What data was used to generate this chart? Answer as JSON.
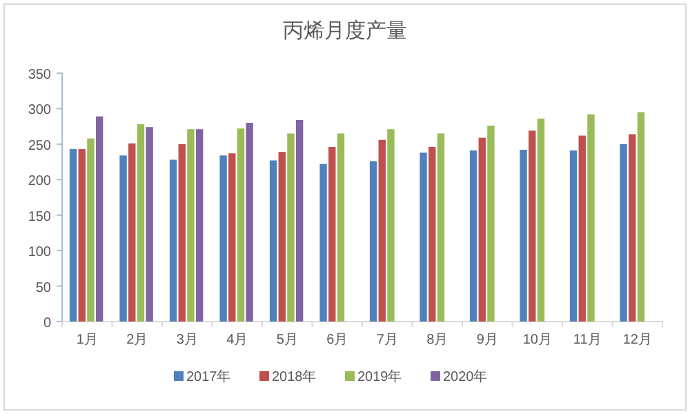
{
  "chart_data": {
    "type": "bar",
    "title": "丙烯月度产量",
    "categories": [
      "1月",
      "2月",
      "3月",
      "4月",
      "5月",
      "6月",
      "7月",
      "8月",
      "9月",
      "10月",
      "11月",
      "12月"
    ],
    "series": [
      {
        "name": "2017年",
        "color": "#4f81bd",
        "values": [
          243,
          234,
          228,
          234,
          227,
          222,
          226,
          238,
          241,
          242,
          241,
          250
        ]
      },
      {
        "name": "2018年",
        "color": "#c0504d",
        "values": [
          243,
          251,
          250,
          237,
          239,
          246,
          256,
          246,
          259,
          269,
          262,
          264
        ]
      },
      {
        "name": "2019年",
        "color": "#9bbb59",
        "values": [
          258,
          278,
          271,
          272,
          265,
          265,
          271,
          265,
          276,
          286,
          292,
          295
        ]
      },
      {
        "name": "2020年",
        "color": "#8064a2",
        "values": [
          289,
          274,
          271,
          280,
          284,
          null,
          null,
          null,
          null,
          null,
          null,
          null
        ]
      }
    ],
    "ylim": [
      0,
      350
    ],
    "yticks": [
      0,
      50,
      100,
      150,
      200,
      250,
      300,
      350
    ],
    "grid": false,
    "legend": "bottom"
  }
}
